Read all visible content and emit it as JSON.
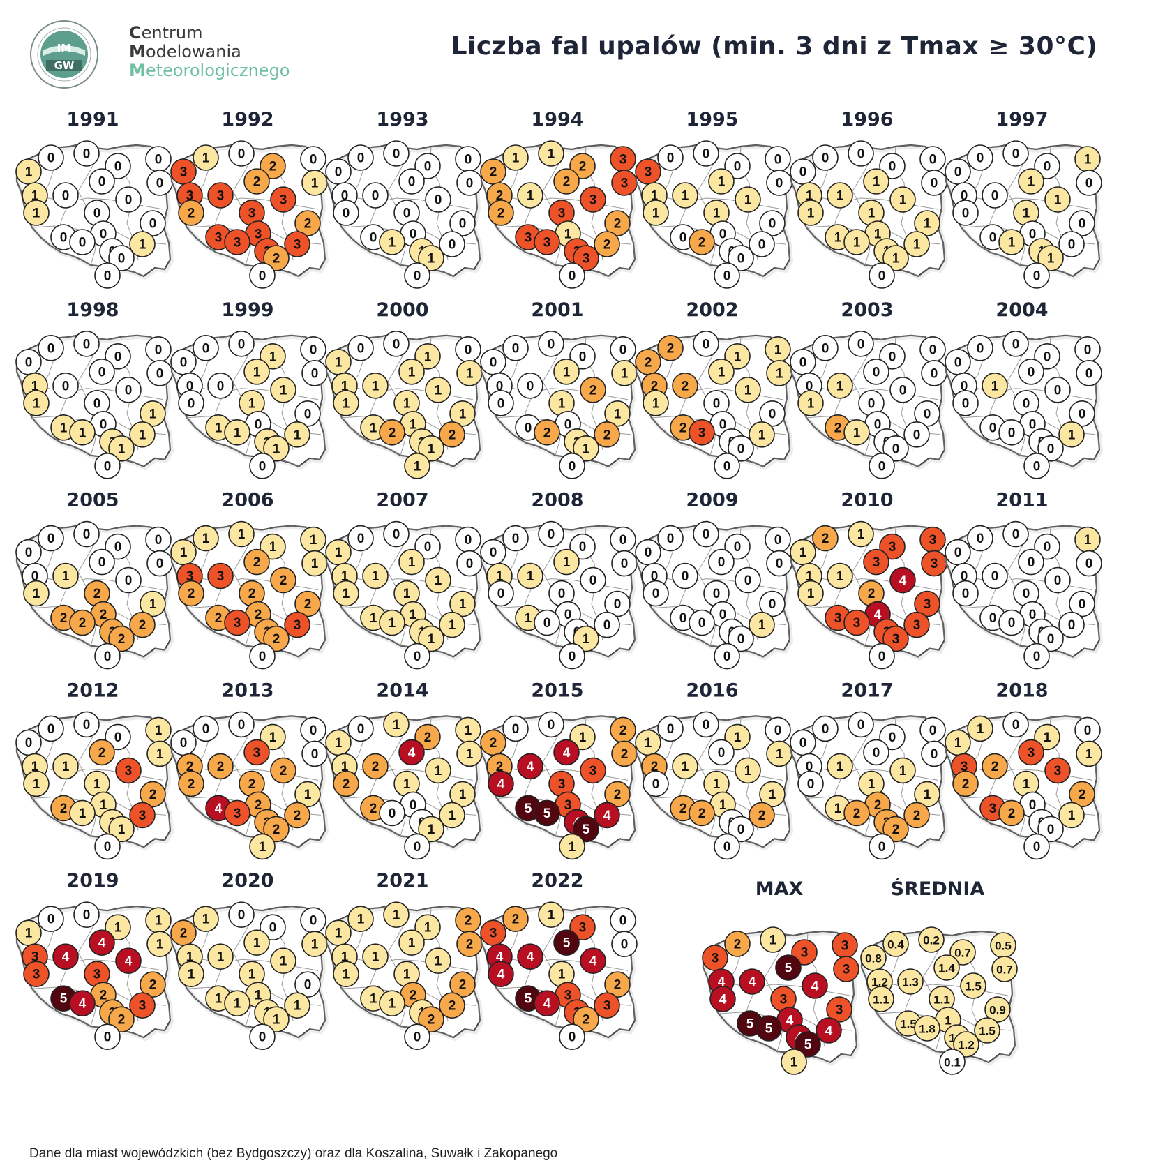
{
  "title": "Liczba fal upalów (min. 3 dni z Tmax ≥ 30°C)",
  "logo": {
    "badge": "IMGW",
    "line1_initial": "C",
    "line1_rest": "entrum",
    "line2_initial": "M",
    "line2_rest": "odelowania",
    "line3_initial": "M",
    "line3_rest": "eteorologicznego"
  },
  "footnote": "Dane dla miast wojewódzkich (bez Bydgoszczy) oraz dla Koszalina, Suwałk i Zakopanego",
  "colors": {
    "0": "#ffffff",
    "1": "#fbe6a2",
    "2": "#f7a84a",
    "3": "#ee5228",
    "4": "#b80f23",
    "5": "#520610"
  },
  "cities": [
    "Koszalin",
    "Gdańsk",
    "Olsztyn",
    "Suwałki",
    "Szczecin",
    "Toruń",
    "Białystok",
    "Gorzów Wlkp.",
    "Poznań",
    "Warszawa",
    "Zielona Góra",
    "Łódź",
    "Lublin",
    "Kielce",
    "Wrocław",
    "Opole",
    "Katowice",
    "Rzeszów",
    "Kraków",
    "Zakopane"
  ],
  "maps": [
    {
      "label": "1991",
      "values": [
        0,
        0,
        0,
        0,
        1,
        0,
        0,
        1,
        0,
        0,
        1,
        0,
        0,
        0,
        0,
        0,
        0,
        1,
        0,
        0
      ]
    },
    {
      "label": "1992",
      "values": [
        1,
        0,
        2,
        0,
        3,
        2,
        1,
        3,
        3,
        3,
        2,
        3,
        2,
        3,
        3,
        3,
        3,
        3,
        2,
        0
      ]
    },
    {
      "label": "1993",
      "values": [
        0,
        0,
        0,
        0,
        0,
        0,
        0,
        0,
        0,
        0,
        0,
        0,
        0,
        0,
        0,
        1,
        1,
        0,
        1,
        0
      ]
    },
    {
      "label": "1994",
      "values": [
        1,
        1,
        2,
        3,
        2,
        2,
        3,
        2,
        1,
        3,
        2,
        3,
        2,
        1,
        3,
        3,
        3,
        2,
        3,
        0
      ]
    },
    {
      "label": "1995",
      "values": [
        0,
        0,
        0,
        0,
        3,
        1,
        0,
        1,
        1,
        1,
        1,
        1,
        0,
        0,
        0,
        2,
        0,
        0,
        0,
        0
      ]
    },
    {
      "label": "1996",
      "values": [
        0,
        0,
        0,
        0,
        0,
        1,
        0,
        1,
        1,
        1,
        1,
        1,
        1,
        1,
        1,
        1,
        1,
        1,
        1,
        0
      ]
    },
    {
      "label": "1997",
      "values": [
        0,
        0,
        0,
        1,
        0,
        1,
        0,
        0,
        0,
        1,
        0,
        1,
        0,
        0,
        0,
        1,
        1,
        0,
        1,
        0
      ]
    },
    {
      "label": "1998",
      "values": [
        0,
        0,
        0,
        0,
        0,
        0,
        0,
        1,
        0,
        0,
        1,
        0,
        1,
        0,
        1,
        1,
        1,
        1,
        1,
        0
      ]
    },
    {
      "label": "1999",
      "values": [
        0,
        0,
        1,
        0,
        0,
        1,
        0,
        0,
        0,
        1,
        0,
        1,
        0,
        0,
        1,
        1,
        1,
        1,
        1,
        0
      ]
    },
    {
      "label": "2000",
      "values": [
        0,
        0,
        1,
        0,
        1,
        1,
        1,
        1,
        1,
        1,
        1,
        1,
        1,
        1,
        1,
        2,
        1,
        2,
        1,
        1
      ]
    },
    {
      "label": "2001",
      "values": [
        0,
        0,
        0,
        0,
        0,
        1,
        1,
        0,
        0,
        2,
        0,
        1,
        1,
        0,
        0,
        2,
        1,
        2,
        1,
        0
      ]
    },
    {
      "label": "2002",
      "values": [
        2,
        0,
        1,
        1,
        2,
        1,
        1,
        2,
        2,
        1,
        1,
        0,
        0,
        0,
        2,
        3,
        0,
        1,
        0,
        0
      ]
    },
    {
      "label": "2003",
      "values": [
        0,
        0,
        0,
        0,
        0,
        0,
        0,
        0,
        1,
        0,
        1,
        0,
        0,
        0,
        2,
        1,
        0,
        0,
        0,
        0
      ]
    },
    {
      "label": "2004",
      "values": [
        0,
        0,
        0,
        0,
        0,
        0,
        0,
        0,
        1,
        0,
        0,
        0,
        0,
        0,
        0,
        0,
        0,
        1,
        0,
        0
      ]
    },
    {
      "label": "2005",
      "values": [
        0,
        0,
        0,
        0,
        0,
        0,
        0,
        0,
        1,
        0,
        1,
        2,
        1,
        2,
        2,
        2,
        2,
        2,
        2,
        0
      ]
    },
    {
      "label": "2006",
      "values": [
        1,
        1,
        1,
        1,
        1,
        2,
        1,
        3,
        3,
        2,
        2,
        2,
        2,
        2,
        2,
        3,
        2,
        3,
        2,
        0
      ]
    },
    {
      "label": "2007",
      "values": [
        0,
        0,
        0,
        0,
        1,
        1,
        0,
        1,
        1,
        1,
        1,
        1,
        1,
        1,
        1,
        1,
        1,
        1,
        1,
        0
      ]
    },
    {
      "label": "2008",
      "values": [
        0,
        0,
        0,
        0,
        0,
        1,
        0,
        1,
        1,
        0,
        0,
        0,
        0,
        0,
        1,
        0,
        0,
        0,
        1,
        0
      ]
    },
    {
      "label": "2009",
      "values": [
        0,
        0,
        0,
        0,
        0,
        0,
        0,
        0,
        0,
        0,
        0,
        0,
        0,
        0,
        0,
        0,
        0,
        1,
        0,
        0
      ]
    },
    {
      "label": "2010",
      "values": [
        2,
        1,
        3,
        3,
        1,
        3,
        3,
        1,
        1,
        4,
        1,
        2,
        3,
        4,
        3,
        3,
        3,
        3,
        3,
        0
      ]
    },
    {
      "label": "2011",
      "values": [
        0,
        0,
        0,
        1,
        0,
        0,
        0,
        0,
        0,
        0,
        0,
        0,
        0,
        0,
        0,
        0,
        0,
        0,
        0,
        0
      ]
    },
    {
      "label": "2012",
      "values": [
        0,
        0,
        0,
        1,
        0,
        2,
        1,
        1,
        1,
        3,
        1,
        1,
        2,
        1,
        2,
        1,
        1,
        3,
        1,
        0
      ]
    },
    {
      "label": "2013",
      "values": [
        0,
        0,
        1,
        0,
        0,
        3,
        0,
        2,
        2,
        2,
        2,
        2,
        1,
        2,
        4,
        3,
        2,
        2,
        2,
        1
      ]
    },
    {
      "label": "2014",
      "values": [
        0,
        1,
        2,
        1,
        1,
        4,
        1,
        1,
        2,
        1,
        2,
        1,
        1,
        0,
        2,
        0,
        0,
        1,
        1,
        0
      ]
    },
    {
      "label": "2015",
      "values": [
        0,
        0,
        1,
        2,
        2,
        4,
        2,
        2,
        4,
        3,
        4,
        3,
        2,
        3,
        5,
        5,
        4,
        4,
        5,
        1
      ]
    },
    {
      "label": "2016",
      "values": [
        0,
        0,
        1,
        0,
        1,
        0,
        1,
        2,
        1,
        1,
        0,
        1,
        1,
        1,
        2,
        2,
        0,
        2,
        0,
        0
      ]
    },
    {
      "label": "2017",
      "values": [
        0,
        0,
        0,
        0,
        0,
        0,
        0,
        0,
        1,
        1,
        0,
        1,
        1,
        2,
        1,
        2,
        2,
        2,
        2,
        0
      ]
    },
    {
      "label": "2018",
      "values": [
        1,
        0,
        1,
        0,
        1,
        3,
        1,
        3,
        2,
        3,
        2,
        1,
        2,
        0,
        3,
        2,
        0,
        1,
        0,
        0
      ]
    },
    {
      "label": "2019",
      "values": [
        0,
        0,
        1,
        1,
        1,
        4,
        1,
        3,
        4,
        4,
        3,
        3,
        2,
        2,
        5,
        4,
        2,
        3,
        2,
        0
      ]
    },
    {
      "label": "2020",
      "values": [
        1,
        0,
        0,
        0,
        2,
        1,
        1,
        1,
        1,
        1,
        1,
        1,
        0,
        1,
        1,
        1,
        1,
        1,
        1,
        0
      ]
    },
    {
      "label": "2021",
      "values": [
        1,
        1,
        1,
        2,
        1,
        1,
        2,
        1,
        1,
        1,
        1,
        1,
        2,
        2,
        1,
        1,
        1,
        2,
        2,
        0
      ]
    },
    {
      "label": "2022",
      "values": [
        2,
        1,
        3,
        0,
        3,
        5,
        0,
        4,
        4,
        4,
        4,
        1,
        2,
        3,
        5,
        4,
        3,
        3,
        2,
        0
      ]
    },
    {
      "label": "MAX",
      "values": [
        2,
        1,
        3,
        3,
        3,
        5,
        3,
        4,
        4,
        4,
        4,
        3,
        3,
        4,
        5,
        5,
        4,
        4,
        5,
        1
      ]
    },
    {
      "label": "ŚREDNIA",
      "values": [
        "0.4",
        "0.2",
        "0.7",
        "0.5",
        "0.8",
        "1.4",
        "0.7",
        "1.2",
        "1.3",
        "1.5",
        "1.1",
        "1.1",
        "0.9",
        "1",
        "1.5",
        "1.8",
        "1.1",
        "1.5",
        "1.2",
        "0.1"
      ],
      "levels": [
        1,
        1,
        1,
        1,
        1,
        1,
        1,
        1,
        1,
        1,
        1,
        1,
        1,
        1,
        1,
        1,
        1,
        1,
        1,
        0
      ]
    }
  ]
}
